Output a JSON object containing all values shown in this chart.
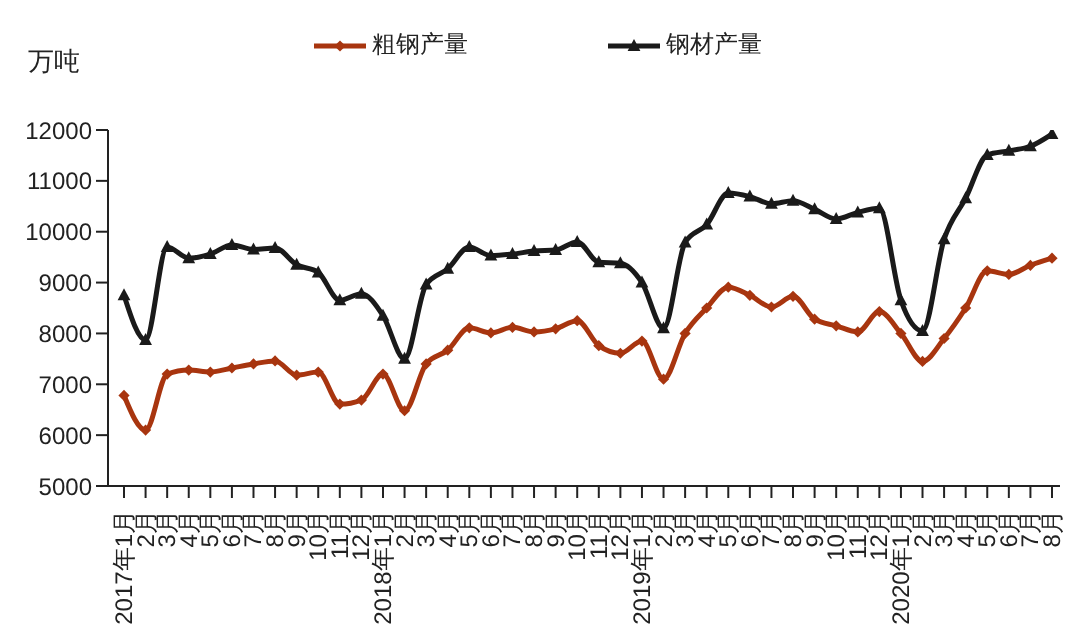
{
  "chart_data": {
    "type": "line",
    "ylabel": "万吨",
    "categories": [
      "2017年1月",
      "2月",
      "3月",
      "4月",
      "5月",
      "6月",
      "7月",
      "8月",
      "9月",
      "10月",
      "11月",
      "12月",
      "2018年1月",
      "2月",
      "3月",
      "4月",
      "5月",
      "6月",
      "7月",
      "8月",
      "9月",
      "10月",
      "11月",
      "12月",
      "2019年1月",
      "2月",
      "3月",
      "4月",
      "5月",
      "6月",
      "7月",
      "8月",
      "9月",
      "10月",
      "11月",
      "12月",
      "2020年1月",
      "2月",
      "3月",
      "4月",
      "5月",
      "6月",
      "7月",
      "8月"
    ],
    "series": [
      {
        "name": "粗钢产量",
        "color": "#a8350f",
        "marker": "diamond",
        "values": [
          6780,
          6100,
          7200,
          7280,
          7240,
          7320,
          7400,
          7460,
          7180,
          7240,
          6610,
          6690,
          7200,
          6480,
          7400,
          7670,
          8110,
          8010,
          8120,
          8030,
          8090,
          8250,
          7760,
          7610,
          7850,
          7100,
          8000,
          8500,
          8910,
          8750,
          8520,
          8730,
          8280,
          8150,
          8030,
          8430,
          8000,
          7450,
          7900,
          8500,
          9230,
          9160,
          9340,
          9480
        ]
      },
      {
        "name": "钢材产量",
        "color": "#1a1a1a",
        "marker": "triangle",
        "values": [
          8750,
          7870,
          9700,
          9480,
          9560,
          9740,
          9650,
          9680,
          9350,
          9200,
          8650,
          8780,
          8350,
          7500,
          8960,
          9270,
          9700,
          9530,
          9560,
          9620,
          9640,
          9800,
          9400,
          9380,
          9000,
          8100,
          9790,
          10140,
          10760,
          10690,
          10550,
          10610,
          10440,
          10250,
          10380,
          10460,
          8650,
          8050,
          9850,
          10660,
          11510,
          11590,
          11680,
          11920
        ]
      }
    ],
    "ylim": [
      5000,
      12000
    ],
    "yticks": [
      5000,
      6000,
      7000,
      8000,
      9000,
      10000,
      11000,
      12000
    ],
    "grid": false,
    "legend": "top",
    "line_style": "solid"
  }
}
